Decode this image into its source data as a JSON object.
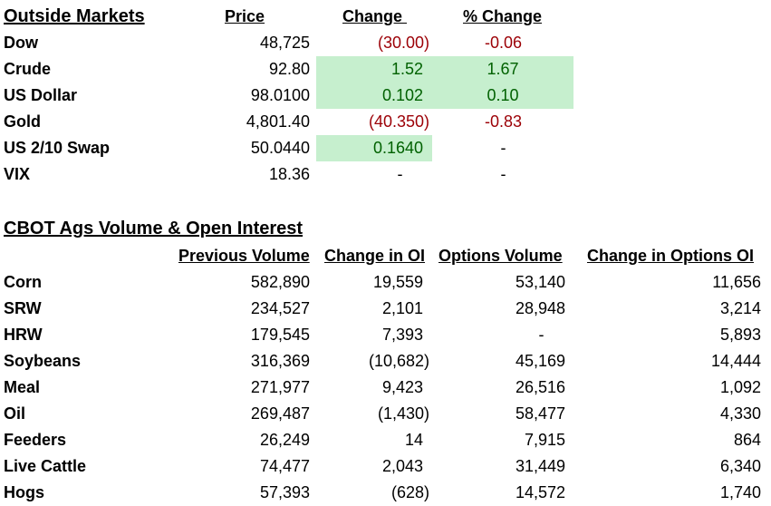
{
  "outside": {
    "title": "Outside Markets",
    "headers": {
      "price": "Price",
      "change": "Change ",
      "pct": "% Change"
    },
    "rows": [
      {
        "name": "Dow",
        "price": "48,725",
        "change": "(30.00)",
        "pct": "-0.06"
      },
      {
        "name": "Crude",
        "price": "92.80",
        "change": "1.52",
        "pct": "1.67"
      },
      {
        "name": "US Dollar",
        "price": "98.0100",
        "change": "0.102",
        "pct": "0.10"
      },
      {
        "name": "Gold",
        "price": "4,801.40",
        "change": "(40.350)",
        "pct": "-0.83"
      },
      {
        "name": "US 2/10 Swap",
        "price": "50.0440",
        "change": "0.1640",
        "pct": "-"
      },
      {
        "name": "VIX",
        "price": "18.36",
        "change": "-",
        "pct": "-"
      }
    ]
  },
  "cbot": {
    "title": "CBOT Ags Volume & Open Interest",
    "headers": {
      "prev_volume": "Previous Volume",
      "change_oi": "Change in OI",
      "options_volume": "Options Volume",
      "change_options_oi": "Change in Options OI"
    },
    "rows": [
      {
        "name": "Corn",
        "prev_volume": "582,890",
        "change_oi": "19,559",
        "options_volume": "53,140",
        "change_options_oi": "11,656"
      },
      {
        "name": "SRW",
        "prev_volume": "234,527",
        "change_oi": "2,101",
        "options_volume": "28,948",
        "change_options_oi": "3,214"
      },
      {
        "name": "HRW",
        "prev_volume": "179,545",
        "change_oi": "7,393",
        "options_volume": "-",
        "change_options_oi": "5,893"
      },
      {
        "name": "Soybeans",
        "prev_volume": "316,369",
        "change_oi": "(10,682)",
        "options_volume": "45,169",
        "change_options_oi": "14,444"
      },
      {
        "name": "Meal",
        "prev_volume": "271,977",
        "change_oi": "9,423",
        "options_volume": "26,516",
        "change_options_oi": "1,092"
      },
      {
        "name": "Oil",
        "prev_volume": "269,487",
        "change_oi": "(1,430)",
        "options_volume": "58,477",
        "change_options_oi": "4,330"
      },
      {
        "name": "Feeders",
        "prev_volume": "26,249",
        "change_oi": "14",
        "options_volume": "7,915",
        "change_options_oi": "864"
      },
      {
        "name": "Live Cattle",
        "prev_volume": "74,477",
        "change_oi": "2,043",
        "options_volume": "31,449",
        "change_options_oi": "6,340"
      },
      {
        "name": "Hogs",
        "prev_volume": "57,393",
        "change_oi": "(628)",
        "options_volume": "14,572",
        "change_options_oi": "1,740"
      }
    ]
  },
  "colors": {
    "negative_text": "#9c0006",
    "positive_text": "#006100",
    "positive_fill": "#c6efce"
  }
}
